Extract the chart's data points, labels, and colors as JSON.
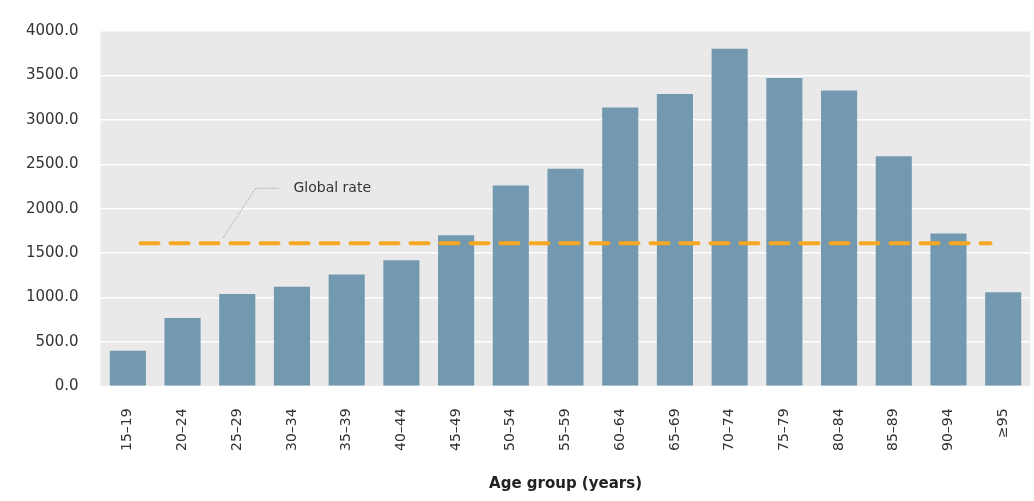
{
  "chart_data": {
    "type": "bar",
    "xlabel": "Age group (years)",
    "categories": [
      "15–19",
      "20–24",
      "25–29",
      "30–34",
      "35–39",
      "40–44",
      "45–49",
      "50–54",
      "55–59",
      "60–64",
      "65–69",
      "70–74",
      "75–79",
      "80–84",
      "85–89",
      "90–94",
      "≥95"
    ],
    "values": [
      400,
      770,
      1040,
      1120,
      1260,
      1420,
      1700,
      2260,
      2450,
      3140,
      3290,
      3800,
      3470,
      3330,
      2590,
      1720,
      1060
    ],
    "color": "#7399b0",
    "ylim": [
      0,
      4000
    ],
    "yticks": [
      {
        "value": 0,
        "label": "0.0"
      },
      {
        "value": 500,
        "label": "500.0"
      },
      {
        "value": 1000,
        "label": "1000.0"
      },
      {
        "value": 1500,
        "label": "1500.0"
      },
      {
        "value": 2000,
        "label": "2000.0"
      },
      {
        "value": 2500,
        "label": "2500.0"
      },
      {
        "value": 3000,
        "label": "3000.0"
      },
      {
        "value": 3500,
        "label": "3500.0"
      },
      {
        "value": 4000,
        "label": "4000.0"
      }
    ],
    "grid": "y",
    "legend": false,
    "ref_lines": [
      {
        "axis": "y",
        "value": 1610,
        "label": "Global rate",
        "color": "#f7a823",
        "line_style": "dashed"
      }
    ]
  }
}
